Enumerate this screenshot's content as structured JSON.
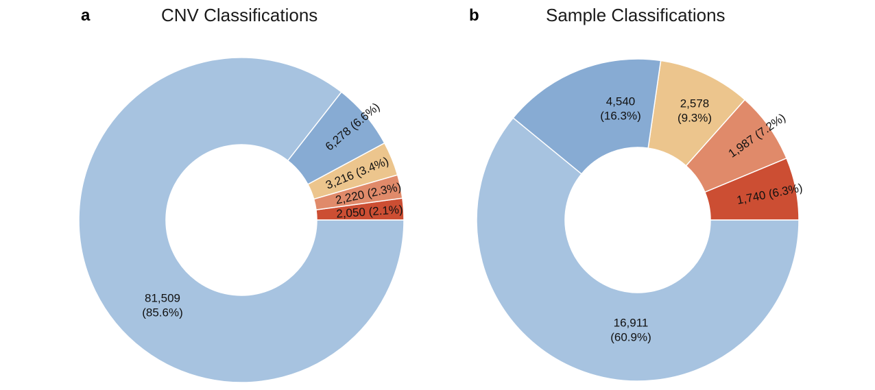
{
  "colors": {
    "slice_1": "#a7c3e0",
    "slice_2": "#87abd3",
    "slice_3": "#ecc58d",
    "slice_4": "#e08a6a",
    "slice_5": "#cc4e33"
  },
  "chart_data": [
    {
      "panel_letter": "a",
      "type": "pie",
      "variant": "donut",
      "title": "CNV Classifications",
      "categories": [
        "",
        "",
        "",
        "",
        ""
      ],
      "values": [
        81509,
        6278,
        3216,
        2220,
        2050
      ],
      "percentages": [
        85.6,
        6.6,
        3.4,
        2.3,
        2.1
      ],
      "labels": [
        "81,509\n(85.6%)",
        "6,278 (6.6%)",
        "3,216 (3.4%)",
        "2,220 (2.3%)",
        "2,050 (2.1%)"
      ],
      "colors": [
        "#a7c3e0",
        "#87abd3",
        "#ecc58d",
        "#e08a6a",
        "#cc4e33"
      ],
      "start": "3 o'clock",
      "direction": "counterclockwise"
    },
    {
      "panel_letter": "b",
      "type": "pie",
      "variant": "donut",
      "title": "Sample Classifications",
      "categories": [
        "",
        "",
        "",
        "",
        ""
      ],
      "values": [
        16911,
        4540,
        2578,
        1987,
        1740
      ],
      "percentages": [
        60.9,
        16.3,
        9.3,
        7.2,
        6.3
      ],
      "labels": [
        "16,911\n(60.9%)",
        "4,540\n(16.3%)",
        "2,578\n(9.3%)",
        "1,987 (7.2%)",
        "1,740 (6.3%)"
      ],
      "colors": [
        "#a7c3e0",
        "#87abd3",
        "#ecc58d",
        "#e08a6a",
        "#cc4e33"
      ],
      "start": "3 o'clock",
      "direction": "counterclockwise"
    }
  ]
}
